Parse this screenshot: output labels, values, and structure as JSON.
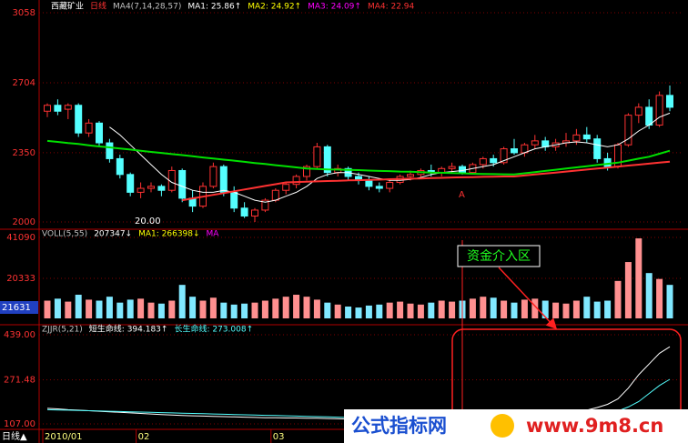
{
  "chart_data": [
    {
      "type": "candlestick",
      "header": [
        {
          "text": "西藏矿业",
          "color": "#ffffff"
        },
        {
          "text": "日线",
          "color": "#ff3232"
        },
        {
          "text": "MA4(7,14,28,57)",
          "color": "#c0c0c0"
        },
        {
          "text": "MA1: 25.86↑",
          "color": "#ffffff"
        },
        {
          "text": "MA2: 24.92↑",
          "color": "#ffff00"
        },
        {
          "text": "MA3: 24.09↑",
          "color": "#ff00ff"
        },
        {
          "text": "MA4: 22.94",
          "color": "#ff3232"
        }
      ],
      "categories": [
        "2010/01",
        null,
        null,
        null,
        null,
        null,
        null,
        null,
        null,
        "02",
        null,
        null,
        null,
        null,
        null,
        null,
        null,
        null,
        null,
        null,
        null,
        null,
        "03",
        null,
        null,
        null,
        null,
        null,
        null,
        null,
        null,
        null,
        null,
        null,
        null,
        null,
        null,
        null,
        null,
        null,
        null,
        null,
        null,
        null,
        null,
        null,
        null,
        null,
        null,
        null,
        null,
        null,
        null,
        null,
        null,
        null,
        null,
        null,
        null,
        null,
        null
      ],
      "ohlc": [
        [
          2560,
          2600,
          2530,
          2590
        ],
        [
          2590,
          2620,
          2540,
          2560
        ],
        [
          2570,
          2600,
          2520,
          2590
        ],
        [
          2590,
          2600,
          2430,
          2450
        ],
        [
          2450,
          2520,
          2430,
          2500
        ],
        [
          2500,
          2510,
          2380,
          2400
        ],
        [
          2400,
          2420,
          2300,
          2320
        ],
        [
          2320,
          2340,
          2220,
          2240
        ],
        [
          2240,
          2250,
          2130,
          2150
        ],
        [
          2150,
          2200,
          2120,
          2170
        ],
        [
          2170,
          2200,
          2150,
          2180
        ],
        [
          2180,
          2190,
          2130,
          2160
        ],
        [
          2160,
          2280,
          2150,
          2260
        ],
        [
          2260,
          2270,
          2100,
          2120
        ],
        [
          2120,
          2160,
          2050,
          2080
        ],
        [
          2080,
          2200,
          2070,
          2180
        ],
        [
          2180,
          2300,
          2170,
          2280
        ],
        [
          2280,
          2290,
          2130,
          2150
        ],
        [
          2150,
          2180,
          2050,
          2070
        ],
        [
          2070,
          2100,
          2020,
          2030
        ],
        [
          2030,
          2070,
          2000,
          2060
        ],
        [
          2060,
          2120,
          2050,
          2110
        ],
        [
          2110,
          2170,
          2100,
          2160
        ],
        [
          2160,
          2200,
          2140,
          2190
        ],
        [
          2190,
          2240,
          2170,
          2230
        ],
        [
          2230,
          2290,
          2210,
          2280
        ],
        [
          2280,
          2400,
          2270,
          2380
        ],
        [
          2380,
          2390,
          2230,
          2250
        ],
        [
          2250,
          2290,
          2230,
          2270
        ],
        [
          2270,
          2280,
          2210,
          2230
        ],
        [
          2230,
          2250,
          2190,
          2210
        ],
        [
          2210,
          2230,
          2160,
          2180
        ],
        [
          2180,
          2200,
          2150,
          2170
        ],
        [
          2170,
          2210,
          2150,
          2200
        ],
        [
          2200,
          2240,
          2190,
          2230
        ],
        [
          2230,
          2260,
          2210,
          2240
        ],
        [
          2240,
          2270,
          2220,
          2260
        ],
        [
          2260,
          2290,
          2230,
          2250
        ],
        [
          2250,
          2280,
          2230,
          2270
        ],
        [
          2270,
          2300,
          2250,
          2280
        ],
        [
          2280,
          2290,
          2240,
          2250
        ],
        [
          2250,
          2300,
          2240,
          2290
        ],
        [
          2290,
          2330,
          2270,
          2320
        ],
        [
          2320,
          2340,
          2280,
          2300
        ],
        [
          2300,
          2380,
          2290,
          2370
        ],
        [
          2370,
          2420,
          2340,
          2350
        ],
        [
          2350,
          2400,
          2330,
          2390
        ],
        [
          2390,
          2440,
          2370,
          2410
        ],
        [
          2410,
          2430,
          2360,
          2380
        ],
        [
          2380,
          2420,
          2360,
          2400
        ],
        [
          2400,
          2450,
          2380,
          2410
        ],
        [
          2410,
          2470,
          2390,
          2440
        ],
        [
          2440,
          2480,
          2400,
          2420
        ],
        [
          2420,
          2440,
          2300,
          2320
        ],
        [
          2320,
          2350,
          2260,
          2280
        ],
        [
          2280,
          2400,
          2270,
          2390
        ],
        [
          2390,
          2550,
          2380,
          2540
        ],
        [
          2540,
          2600,
          2500,
          2580
        ],
        [
          2580,
          2620,
          2470,
          2490
        ],
        [
          2490,
          2660,
          2480,
          2640
        ],
        [
          2640,
          2690,
          2560,
          2580
        ]
      ],
      "up_color": "#ff3232",
      "down_color": "#54ffff",
      "series": [
        {
          "color": "#ffffff",
          "width": 1,
          "values": [
            null,
            null,
            null,
            null,
            null,
            null,
            2480,
            2440,
            2390,
            2340,
            2290,
            2240,
            2200,
            2180,
            2160,
            2150,
            2150,
            2160,
            2150,
            2130,
            2110,
            2100,
            2110,
            2130,
            2150,
            2180,
            2220,
            2240,
            2250,
            2250,
            2240,
            2230,
            2220,
            2210,
            2210,
            2215,
            2225,
            2240,
            2250,
            2255,
            2260,
            2270,
            2280,
            2290,
            2310,
            2330,
            2350,
            2370,
            2380,
            2390,
            2400,
            2405,
            2400,
            2390,
            2380,
            2390,
            2420,
            2460,
            2490,
            2530,
            2550
          ]
        },
        {
          "color": "#ff3232",
          "width": 2,
          "values": [
            null,
            null,
            null,
            null,
            null,
            null,
            null,
            null,
            null,
            null,
            null,
            null,
            null,
            2110,
            2119,
            2128,
            2137,
            2146,
            2155,
            2164,
            2173,
            2182,
            2191,
            2200,
            2202,
            2204,
            2205,
            2207,
            2208,
            2210,
            2211,
            2213,
            2214,
            2216,
            2217,
            2219,
            2220,
            2222,
            2223,
            2225,
            2226,
            2227,
            2228,
            2229,
            2230,
            2230,
            2235,
            2240,
            2245,
            2250,
            2255,
            2260,
            2265,
            2270,
            2275,
            2280,
            2285,
            2290,
            2295,
            2300,
            2305
          ]
        },
        {
          "color": "#00e000",
          "width": 2,
          "values": [
            2410,
            2405,
            2399,
            2394,
            2388,
            2382,
            2377,
            2371,
            2366,
            2360,
            2354,
            2349,
            2343,
            2338,
            2332,
            2326,
            2321,
            2315,
            2310,
            2304,
            2298,
            2293,
            2287,
            2282,
            2276,
            2270,
            2268,
            2266,
            2265,
            2263,
            2262,
            2260,
            2258,
            2257,
            2255,
            2254,
            2252,
            2250,
            2249,
            2247,
            2246,
            2244,
            2243,
            2242,
            2241,
            2240,
            2246,
            2252,
            2258,
            2264,
            2270,
            2276,
            2282,
            2288,
            2294,
            2300,
            2310,
            2320,
            2330,
            2345,
            2360
          ]
        }
      ],
      "ylim": [
        2000,
        3058
      ],
      "yticks": [
        3058,
        2704,
        2350,
        2000
      ],
      "tick_color": "#ff3232",
      "grid": true,
      "annotations": [
        "20.00",
        "A"
      ],
      "period_label": "日线▲"
    },
    {
      "type": "bar",
      "header": [
        {
          "text": "VOLL(5,55)",
          "color": "#c0c0c0"
        },
        {
          "text": "207347↓",
          "color": "#ffffff"
        },
        {
          "text": "MA1: 266398↓",
          "color": "#ffff00"
        },
        {
          "text": "MA",
          "color": "#ff00ff"
        }
      ],
      "values": [
        9000,
        10000,
        8500,
        12000,
        9500,
        9000,
        11000,
        8000,
        9500,
        10000,
        8000,
        7500,
        9000,
        17000,
        11000,
        9000,
        10500,
        8000,
        7000,
        7500,
        8000,
        9000,
        10000,
        11000,
        12000,
        11000,
        9500,
        8000,
        7000,
        6000,
        5500,
        6500,
        7000,
        8000,
        8500,
        7500,
        7000,
        8000,
        9000,
        8500,
        9000,
        10000,
        11000,
        10500,
        9000,
        8000,
        9500,
        10000,
        9000,
        8000,
        7500,
        9000,
        11000,
        8500,
        9000,
        19000,
        28600,
        40600,
        23000,
        20000,
        17000
      ],
      "up_color": "#ff9090",
      "down_color": "#80e8ff",
      "ylim": [
        0,
        41090
      ],
      "yticks": [
        41090,
        20333
      ],
      "tick_color": "#ff3232",
      "grid": true,
      "marker": "21631"
    },
    {
      "type": "line",
      "header": [
        {
          "text": "ZJJR(5,21)",
          "color": "#c0c0c0"
        },
        {
          "text": "短生命线: 394.183↑",
          "color": "#ffffff"
        },
        {
          "text": "长生命线: 273.008↑",
          "color": "#54ffff"
        }
      ],
      "series": [
        {
          "color": "#ffffff",
          "values": [
            165,
            163,
            160,
            158,
            156,
            154,
            152,
            150,
            148,
            146,
            144,
            142,
            140,
            138,
            137,
            136,
            135,
            134,
            133,
            132,
            131,
            130,
            130,
            129,
            129,
            128,
            128,
            127,
            126,
            125,
            124,
            123,
            122,
            122,
            121,
            121,
            120,
            120,
            121,
            122,
            123,
            124,
            125,
            127,
            129,
            131,
            133,
            135,
            137,
            140,
            145,
            150,
            158,
            168,
            180,
            200,
            240,
            290,
            330,
            370,
            394.183
          ]
        },
        {
          "color": "#54ffff",
          "values": [
            160,
            159,
            158,
            157,
            156,
            155,
            154,
            153,
            152,
            151,
            150,
            149,
            148,
            147,
            146,
            145,
            144,
            143,
            142,
            141,
            140,
            139,
            138,
            137,
            136,
            135,
            134,
            133,
            132,
            131,
            130,
            129,
            128,
            128,
            127,
            127,
            126,
            126,
            126,
            126,
            126,
            126,
            127,
            127,
            128,
            128,
            129,
            130,
            131,
            132,
            134,
            136,
            139,
            143,
            148,
            155,
            170,
            190,
            220,
            250,
            273.008
          ]
        }
      ],
      "ylim": [
        107,
        439
      ],
      "yticks": [
        {
          "value": 439,
          "label": "439.00"
        },
        {
          "value": 271.48,
          "label": "271.48"
        },
        {
          "value": 107,
          "label": "107.00"
        }
      ],
      "tick_color": "#ff3232",
      "grid": true
    }
  ],
  "overlay": {
    "callout": "资金介入区",
    "watermark_title": "公式指标网",
    "watermark_url": "www.9m8.cn"
  }
}
